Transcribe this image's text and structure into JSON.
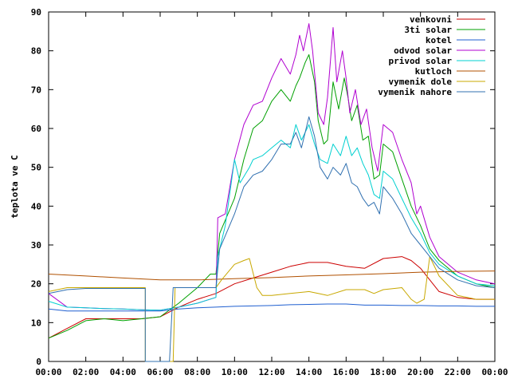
{
  "chart_data": {
    "type": "line",
    "ylabel": "teplota ve C",
    "xlim": [
      0,
      24
    ],
    "ylim": [
      0,
      90
    ],
    "x_ticks": [
      "00:00",
      "02:00",
      "04:00",
      "06:00",
      "08:00",
      "10:00",
      "12:00",
      "14:00",
      "16:00",
      "18:00",
      "20:00",
      "22:00",
      "00:00"
    ],
    "y_ticks": [
      0,
      10,
      20,
      30,
      40,
      50,
      60,
      70,
      80,
      90
    ],
    "grid": false,
    "legend_position": "top-right",
    "series": [
      {
        "name": "venkovni",
        "color": "#cc0000",
        "points": [
          [
            0,
            6
          ],
          [
            1,
            8.5
          ],
          [
            2,
            11
          ],
          [
            3,
            11
          ],
          [
            4,
            11
          ],
          [
            5,
            11
          ],
          [
            6,
            11.5
          ],
          [
            7,
            14
          ],
          [
            8,
            16
          ],
          [
            9,
            17.5
          ],
          [
            10,
            20
          ],
          [
            11,
            21.5
          ],
          [
            12,
            23
          ],
          [
            13,
            24.5
          ],
          [
            14,
            25.5
          ],
          [
            15,
            25.5
          ],
          [
            16,
            24.5
          ],
          [
            17,
            24
          ],
          [
            18,
            26.5
          ],
          [
            19,
            27
          ],
          [
            19.5,
            26
          ],
          [
            20,
            24
          ],
          [
            21,
            18
          ],
          [
            22,
            16.5
          ],
          [
            23,
            16
          ],
          [
            24,
            16
          ]
        ]
      },
      {
        "name": "3ti solar",
        "color": "#00a000",
        "points": [
          [
            0,
            6
          ],
          [
            1,
            8
          ],
          [
            2,
            10.5
          ],
          [
            3,
            11
          ],
          [
            4,
            10.5
          ],
          [
            5,
            11
          ],
          [
            6,
            11.5
          ],
          [
            7,
            15
          ],
          [
            8,
            19
          ],
          [
            8.7,
            22.5
          ],
          [
            9.0,
            22.5
          ],
          [
            9.2,
            33
          ],
          [
            10,
            42
          ],
          [
            10.5,
            52
          ],
          [
            11,
            60
          ],
          [
            11.5,
            62
          ],
          [
            12,
            67
          ],
          [
            12.5,
            70
          ],
          [
            13,
            67
          ],
          [
            13.3,
            71
          ],
          [
            13.5,
            73
          ],
          [
            13.8,
            77
          ],
          [
            14.0,
            79
          ],
          [
            14.3,
            72
          ],
          [
            14.5,
            62
          ],
          [
            14.8,
            56
          ],
          [
            15,
            57
          ],
          [
            15.3,
            72
          ],
          [
            15.6,
            65
          ],
          [
            15.9,
            73
          ],
          [
            16.1,
            68
          ],
          [
            16.3,
            62
          ],
          [
            16.6,
            66
          ],
          [
            16.9,
            57
          ],
          [
            17.2,
            58
          ],
          [
            17.5,
            47
          ],
          [
            17.8,
            48
          ],
          [
            18,
            56
          ],
          [
            18.5,
            54
          ],
          [
            19,
            47
          ],
          [
            19.5,
            40
          ],
          [
            20,
            35
          ],
          [
            20.5,
            29
          ],
          [
            21,
            26
          ],
          [
            22,
            22
          ],
          [
            23,
            20
          ],
          [
            24,
            19
          ]
        ]
      },
      {
        "name": "kotel",
        "color": "#1f5fd0",
        "points": [
          [
            0,
            13.5
          ],
          [
            1,
            13
          ],
          [
            2,
            13
          ],
          [
            3,
            13
          ],
          [
            4,
            13
          ],
          [
            5,
            13
          ],
          [
            6,
            13
          ],
          [
            7,
            13.5
          ],
          [
            8,
            13.8
          ],
          [
            9,
            14
          ],
          [
            10,
            14.2
          ],
          [
            11,
            14.3
          ],
          [
            12,
            14.4
          ],
          [
            13,
            14.6
          ],
          [
            14,
            14.7
          ],
          [
            15,
            14.8
          ],
          [
            16,
            14.8
          ],
          [
            17,
            14.5
          ],
          [
            18,
            14.5
          ],
          [
            19,
            14.4
          ],
          [
            20,
            14.4
          ],
          [
            21,
            14.3
          ],
          [
            22,
            14.3
          ],
          [
            23,
            14.2
          ],
          [
            24,
            14.2
          ]
        ]
      },
      {
        "name": "odvod solar",
        "color": "#b000d0",
        "points": [
          [
            0,
            17.5
          ],
          [
            1,
            14
          ],
          [
            2,
            13.8
          ],
          [
            3,
            13.6
          ],
          [
            4,
            13.5
          ],
          [
            5,
            13.3
          ],
          [
            6,
            13.2
          ],
          [
            7,
            14
          ],
          [
            8,
            15
          ],
          [
            9,
            16.5
          ],
          [
            9.1,
            37
          ],
          [
            9.5,
            38
          ],
          [
            10,
            52
          ],
          [
            10.5,
            61
          ],
          [
            11,
            66
          ],
          [
            11.5,
            67
          ],
          [
            12,
            73
          ],
          [
            12.5,
            78
          ],
          [
            13,
            74
          ],
          [
            13.3,
            79
          ],
          [
            13.5,
            84
          ],
          [
            13.7,
            80
          ],
          [
            14.0,
            87
          ],
          [
            14.2,
            80
          ],
          [
            14.5,
            64
          ],
          [
            14.8,
            61
          ],
          [
            15.0,
            68
          ],
          [
            15.3,
            86
          ],
          [
            15.5,
            72
          ],
          [
            15.8,
            80
          ],
          [
            16.0,
            73
          ],
          [
            16.2,
            64
          ],
          [
            16.5,
            70
          ],
          [
            16.8,
            61
          ],
          [
            17.1,
            65
          ],
          [
            17.4,
            55
          ],
          [
            17.7,
            49
          ],
          [
            18,
            61
          ],
          [
            18.5,
            59
          ],
          [
            19,
            52
          ],
          [
            19.5,
            46
          ],
          [
            19.8,
            38
          ],
          [
            20,
            40
          ],
          [
            20.5,
            32
          ],
          [
            21,
            27
          ],
          [
            22,
            23
          ],
          [
            23,
            21
          ],
          [
            24,
            20
          ]
        ]
      },
      {
        "name": "privod solar",
        "color": "#00d0d0",
        "points": [
          [
            0,
            15.5
          ],
          [
            1,
            14
          ],
          [
            2,
            13.8
          ],
          [
            3,
            13.6
          ],
          [
            4,
            13.5
          ],
          [
            5,
            13.3
          ],
          [
            6,
            13.2
          ],
          [
            7,
            14
          ],
          [
            8,
            15
          ],
          [
            9,
            16.5
          ],
          [
            9.1,
            27
          ],
          [
            9.5,
            35
          ],
          [
            10,
            52
          ],
          [
            10.3,
            46
          ],
          [
            10.8,
            50
          ],
          [
            11,
            52
          ],
          [
            11.5,
            53
          ],
          [
            12,
            55
          ],
          [
            12.5,
            57
          ],
          [
            13,
            55
          ],
          [
            13.3,
            61
          ],
          [
            13.6,
            57
          ],
          [
            14,
            61
          ],
          [
            14.3,
            56
          ],
          [
            14.6,
            52
          ],
          [
            15,
            51
          ],
          [
            15.3,
            56
          ],
          [
            15.7,
            53
          ],
          [
            16,
            58
          ],
          [
            16.3,
            53
          ],
          [
            16.6,
            55
          ],
          [
            16.9,
            51
          ],
          [
            17.2,
            48
          ],
          [
            17.5,
            43
          ],
          [
            17.8,
            42
          ],
          [
            18,
            49
          ],
          [
            18.5,
            47
          ],
          [
            19,
            42
          ],
          [
            19.5,
            37
          ],
          [
            20,
            33
          ],
          [
            20.5,
            28
          ],
          [
            21,
            25
          ],
          [
            22,
            22
          ],
          [
            23,
            20
          ],
          [
            24,
            19.5
          ]
        ]
      },
      {
        "name": "kutloch",
        "color": "#b05000",
        "points": [
          [
            0,
            22.5
          ],
          [
            2,
            22
          ],
          [
            4,
            21.5
          ],
          [
            6,
            21
          ],
          [
            8,
            21
          ],
          [
            10,
            21.3
          ],
          [
            12,
            21.6
          ],
          [
            14,
            22
          ],
          [
            16,
            22.3
          ],
          [
            18,
            22.6
          ],
          [
            20,
            23
          ],
          [
            22,
            23.2
          ],
          [
            24,
            23.3
          ]
        ]
      },
      {
        "name": "vymenik dole",
        "color": "#c8a800",
        "points": [
          [
            0,
            18
          ],
          [
            1,
            19
          ],
          [
            2,
            19
          ],
          [
            3,
            19
          ],
          [
            4,
            19
          ],
          [
            5,
            19
          ],
          [
            5.2,
            19
          ],
          [
            5.2,
            0
          ],
          [
            6.7,
            0
          ],
          [
            6.8,
            19
          ],
          [
            8,
            19
          ],
          [
            9.0,
            19
          ],
          [
            9.3,
            21
          ],
          [
            10,
            25
          ],
          [
            10.5,
            26
          ],
          [
            10.8,
            26.5
          ],
          [
            11.2,
            19
          ],
          [
            11.5,
            17
          ],
          [
            12,
            17
          ],
          [
            13,
            17.5
          ],
          [
            14,
            18
          ],
          [
            14.5,
            17.5
          ],
          [
            15,
            17
          ],
          [
            16,
            18.5
          ],
          [
            17,
            18.5
          ],
          [
            17.5,
            17.5
          ],
          [
            18,
            18.5
          ],
          [
            19,
            19
          ],
          [
            19.5,
            16
          ],
          [
            19.8,
            15
          ],
          [
            20.2,
            16
          ],
          [
            20.5,
            27
          ],
          [
            21,
            22
          ],
          [
            22,
            17
          ],
          [
            23,
            16
          ],
          [
            24,
            16
          ]
        ]
      },
      {
        "name": "vymenik nahore",
        "color": "#3070b0",
        "points": [
          [
            0,
            17.5
          ],
          [
            1,
            18.5
          ],
          [
            2,
            18.8
          ],
          [
            3,
            18.8
          ],
          [
            4,
            18.8
          ],
          [
            5,
            18.8
          ],
          [
            5.2,
            18.8
          ],
          [
            5.2,
            0
          ],
          [
            6.5,
            0
          ],
          [
            6.7,
            19
          ],
          [
            8,
            19
          ],
          [
            9,
            19
          ],
          [
            9.2,
            29
          ],
          [
            10,
            38
          ],
          [
            10.5,
            45
          ],
          [
            11,
            48
          ],
          [
            11.5,
            49
          ],
          [
            12,
            52
          ],
          [
            12.5,
            56
          ],
          [
            13,
            56
          ],
          [
            13.3,
            59
          ],
          [
            13.6,
            55
          ],
          [
            14,
            63
          ],
          [
            14.3,
            58
          ],
          [
            14.6,
            50
          ],
          [
            15,
            47
          ],
          [
            15.3,
            50
          ],
          [
            15.7,
            48
          ],
          [
            16,
            51
          ],
          [
            16.3,
            46
          ],
          [
            16.6,
            45
          ],
          [
            16.9,
            42
          ],
          [
            17.2,
            40
          ],
          [
            17.5,
            41
          ],
          [
            17.8,
            38
          ],
          [
            18,
            45
          ],
          [
            18.5,
            42
          ],
          [
            19,
            38
          ],
          [
            19.5,
            33
          ],
          [
            20,
            30
          ],
          [
            20.5,
            27
          ],
          [
            21,
            24
          ],
          [
            22,
            21
          ],
          [
            23,
            19.5
          ],
          [
            24,
            19
          ]
        ]
      }
    ]
  }
}
